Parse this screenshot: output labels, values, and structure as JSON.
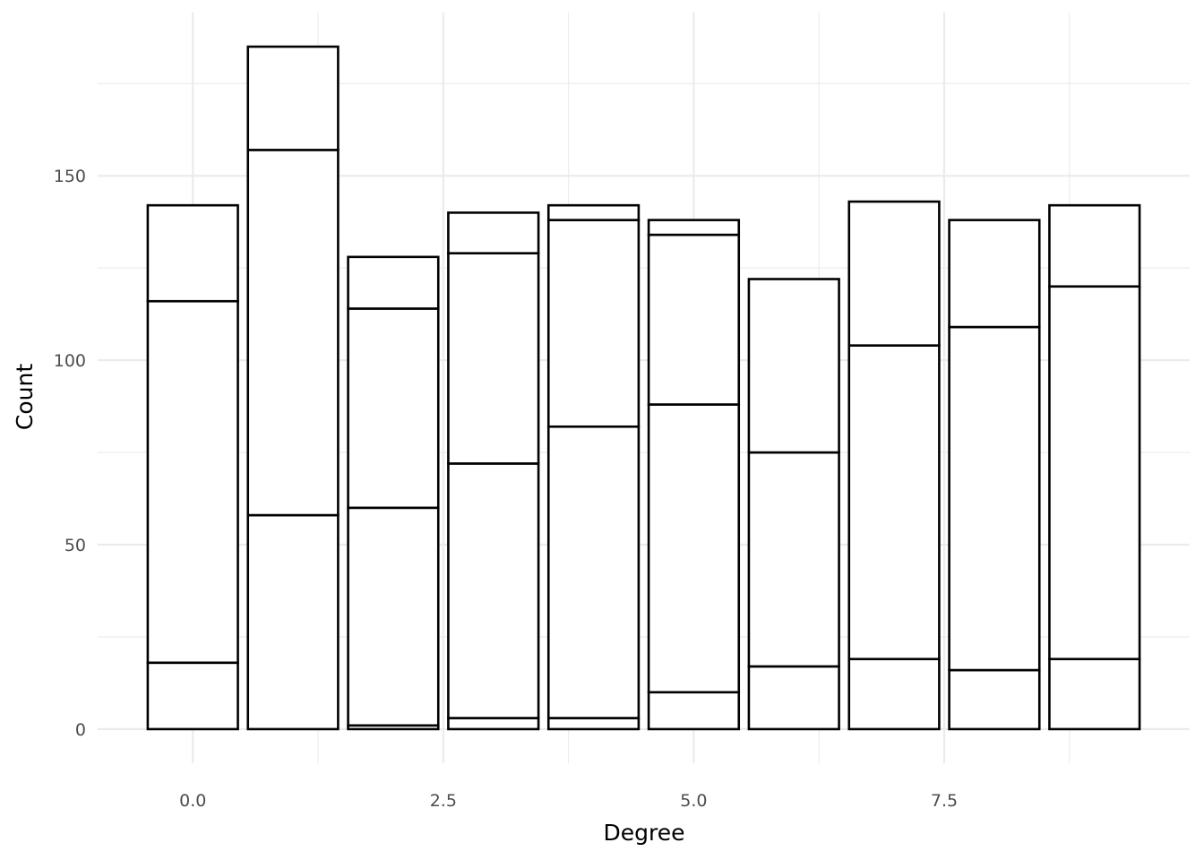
{
  "chart_data": {
    "type": "bar",
    "stacked": true,
    "title": "",
    "xlabel": "Degree",
    "ylabel": "Count",
    "x": [
      0,
      1,
      2,
      3,
      4,
      5,
      6,
      7,
      8,
      9
    ],
    "xlim": [
      -0.95,
      9.95
    ],
    "ylim": [
      -9.25,
      194.25
    ],
    "x_ticks": [
      0,
      2.5,
      5,
      7.5
    ],
    "x_tick_labels": [
      "0.0",
      "2.5",
      "5.0",
      "7.5"
    ],
    "y_ticks": [
      0,
      50,
      100,
      150
    ],
    "y_tick_labels": [
      "0",
      "50",
      "100",
      "150"
    ],
    "bar_width": 0.9,
    "grid": true,
    "legend": "none",
    "fill_color": "#ffffff",
    "outline_color": "#000000",
    "grid_color": "#ebebeb",
    "stack_boundaries": [
      [
        0,
        18,
        116,
        142
      ],
      [
        0,
        58,
        157,
        185
      ],
      [
        0,
        1,
        60,
        114,
        128
      ],
      [
        0,
        3,
        72,
        129,
        140
      ],
      [
        0,
        3,
        82,
        138,
        142
      ],
      [
        0,
        10,
        88,
        134,
        138
      ],
      [
        0,
        17,
        75,
        122
      ],
      [
        0,
        19,
        104,
        143
      ],
      [
        0,
        16,
        109,
        138
      ],
      [
        0,
        19,
        120,
        142
      ]
    ]
  }
}
